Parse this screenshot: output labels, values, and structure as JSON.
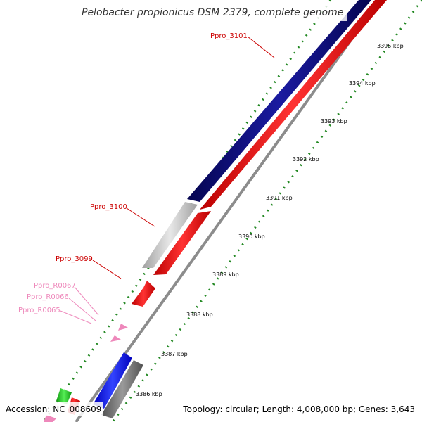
{
  "title": "Pelobacter propionicus DSM 2379, complete genome",
  "footer": {
    "accession": "Accession: NC_008609",
    "topology": "Topology: circular; Length: 4,008,000 bp; Genes: 3,643"
  },
  "gene_labels": [
    {
      "text": "Ppro_3101",
      "color": "#cc0000"
    },
    {
      "text": "Ppro_3100",
      "color": "#cc0000"
    },
    {
      "text": "Ppro_3099",
      "color": "#cc0000"
    },
    {
      "text": "Ppro_R0067",
      "color": "#ee88bb"
    },
    {
      "text": "Ppro_R0066",
      "color": "#ee88bb"
    },
    {
      "text": "Ppro_R0065",
      "color": "#ee88bb"
    }
  ],
  "kbp_ticks": [
    "3395 kbp",
    "3394 kbp",
    "3393 kbp",
    "3392 kbp",
    "3391 kbp",
    "3390 kbp",
    "3389 kbp",
    "3388 kbp",
    "3387 kbp",
    "3386 kbp"
  ],
  "colors": {
    "navy_feature": "#0a0a80",
    "red_feature": "#ff1111",
    "silver_feature": "#c8c8c8",
    "blue_feature": "#1111ff",
    "gray_feature": "#707070",
    "green_feature": "#22cc22",
    "pink_feature": "#ee88bb",
    "backbone": "#888888",
    "dots": "#228822"
  }
}
